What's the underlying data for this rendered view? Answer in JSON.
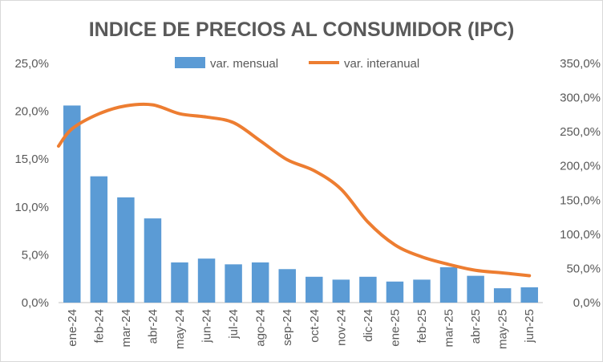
{
  "chart_data": {
    "type": "bar",
    "title": "INDICE DE PRECIOS AL CONSUMIDOR (IPC)",
    "categories": [
      "ene-24",
      "feb-24",
      "mar-24",
      "abr-24",
      "may-24",
      "jun-24",
      "jul-24",
      "ago-24",
      "sep-24",
      "oct-24",
      "nov-24",
      "dic-24",
      "ene-25",
      "feb-25",
      "mar-25",
      "abr-25",
      "may-25",
      "jun-25"
    ],
    "series": [
      {
        "name": "var. mensual",
        "type": "bar",
        "axis": "left",
        "values": [
          20.6,
          13.2,
          11.0,
          8.8,
          4.2,
          4.6,
          4.0,
          4.2,
          3.5,
          2.7,
          2.4,
          2.7,
          2.2,
          2.4,
          3.7,
          2.8,
          1.5,
          1.6
        ]
      },
      {
        "name": "var. interanual",
        "type": "line",
        "axis": "right",
        "values": [
          254.2,
          276.2,
          287.9,
          289.4,
          276.4,
          271.5,
          263.4,
          236.7,
          209.0,
          193.0,
          166.0,
          117.8,
          84.5,
          66.9,
          55.9,
          47.3,
          43.5,
          39.4
        ]
      }
    ],
    "left_axis": {
      "ylim": [
        0,
        25
      ],
      "ticks": [
        "0,0%",
        "5,0%",
        "10,0%",
        "15,0%",
        "20,0%",
        "25,0%"
      ]
    },
    "right_axis": {
      "ylim": [
        0,
        350
      ],
      "ticks": [
        "0,0%",
        "50,0%",
        "100,0%",
        "150,0%",
        "200,0%",
        "250,0%",
        "300,0%",
        "350,0%"
      ]
    },
    "line_start_value": 229,
    "legend_position": "top",
    "grid": false,
    "colors": {
      "bar": "#5b9bd5",
      "line": "#ed7d31",
      "text": "#595959",
      "axis": "#bfbfbf"
    }
  }
}
